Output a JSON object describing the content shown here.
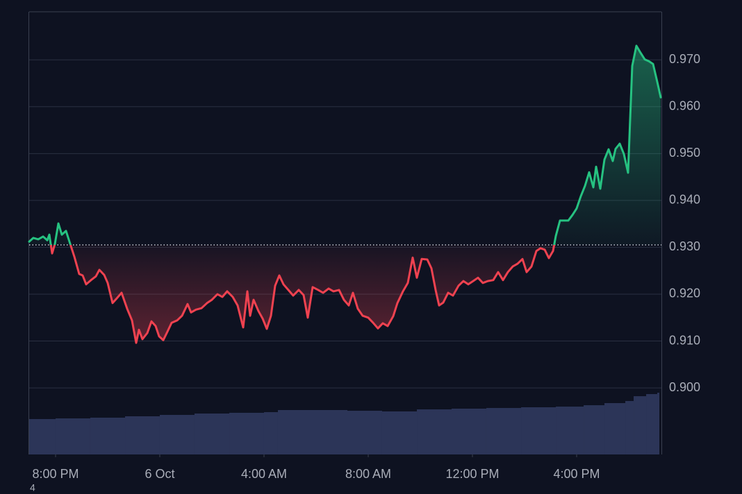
{
  "chart_data": {
    "type": "line",
    "x": [
      -1.013,
      -0.853,
      -0.667,
      -0.48,
      -0.32,
      -0.24,
      -0.133,
      -0.027,
      0.107,
      0.24,
      0.4,
      0.533,
      0.72,
      0.907,
      1.04,
      1.173,
      1.36,
      1.547,
      1.68,
      1.867,
      2.0,
      2.187,
      2.347,
      2.533,
      2.747,
      2.933,
      3.093,
      3.2,
      3.333,
      3.52,
      3.68,
      3.84,
      3.973,
      4.133,
      4.293,
      4.453,
      4.667,
      4.853,
      5.067,
      5.2,
      5.387,
      5.6,
      5.813,
      6.0,
      6.213,
      6.4,
      6.587,
      6.8,
      6.987,
      7.2,
      7.36,
      7.467,
      7.6,
      7.787,
      7.947,
      8.107,
      8.267,
      8.427,
      8.587,
      8.747,
      8.933,
      9.12,
      9.333,
      9.52,
      9.68,
      9.867,
      10.08,
      10.267,
      10.48,
      10.667,
      10.88,
      11.067,
      11.253,
      11.413,
      11.6,
      11.787,
      12.0,
      12.187,
      12.373,
      12.56,
      12.747,
      12.96,
      13.12,
      13.333,
      13.52,
      13.707,
      13.867,
      14.053,
      14.267,
      14.427,
      14.587,
      14.72,
      14.88,
      15.067,
      15.253,
      15.467,
      15.653,
      15.84,
      16.027,
      16.213,
      16.4,
      16.587,
      16.8,
      16.987,
      17.173,
      17.36,
      17.547,
      17.733,
      17.92,
      18.08,
      18.267,
      18.453,
      18.613,
      18.773,
      18.933,
      19.093,
      19.2,
      19.36,
      19.52,
      19.68,
      19.84,
      20.0,
      20.16,
      20.32,
      20.48,
      20.64,
      20.747,
      20.907,
      21.067,
      21.227,
      21.387,
      21.493,
      21.653,
      21.813,
      21.973,
      22.133,
      22.293,
      22.453,
      22.613,
      22.773,
      22.933,
      23.093,
      23.227
    ],
    "values": [
      0.9312,
      0.932,
      0.9317,
      0.9323,
      0.9315,
      0.9327,
      0.9287,
      0.9307,
      0.9351,
      0.9327,
      0.9335,
      0.9312,
      0.928,
      0.9243,
      0.924,
      0.9221,
      0.923,
      0.9238,
      0.9252,
      0.9241,
      0.9224,
      0.9181,
      0.9191,
      0.9203,
      0.9169,
      0.9144,
      0.9096,
      0.9124,
      0.9104,
      0.9117,
      0.9142,
      0.9132,
      0.911,
      0.9102,
      0.912,
      0.9139,
      0.9144,
      0.9154,
      0.9179,
      0.9161,
      0.9167,
      0.917,
      0.9181,
      0.9188,
      0.92,
      0.9194,
      0.9206,
      0.9194,
      0.9176,
      0.9129,
      0.9206,
      0.9154,
      0.9188,
      0.9164,
      0.9148,
      0.9126,
      0.9154,
      0.9218,
      0.924,
      0.9221,
      0.9209,
      0.9197,
      0.9209,
      0.9198,
      0.915,
      0.9215,
      0.9209,
      0.9203,
      0.9212,
      0.9206,
      0.9209,
      0.9188,
      0.9176,
      0.9203,
      0.9169,
      0.9154,
      0.915,
      0.9139,
      0.9127,
      0.9138,
      0.9132,
      0.9153,
      0.9181,
      0.9206,
      0.9224,
      0.9278,
      0.9235,
      0.9275,
      0.9274,
      0.9255,
      0.9209,
      0.9176,
      0.9182,
      0.9203,
      0.9197,
      0.9218,
      0.9228,
      0.9221,
      0.9228,
      0.9235,
      0.9224,
      0.9228,
      0.923,
      0.9247,
      0.923,
      0.9247,
      0.9259,
      0.9265,
      0.9275,
      0.9247,
      0.9259,
      0.9292,
      0.9298,
      0.9295,
      0.9277,
      0.9292,
      0.9324,
      0.9357,
      0.9357,
      0.9357,
      0.9369,
      0.9383,
      0.9409,
      0.9431,
      0.946,
      0.9428,
      0.9472,
      0.9425,
      0.9487,
      0.9509,
      0.9484,
      0.951,
      0.9521,
      0.9499,
      0.9459,
      0.9687,
      0.973,
      0.9715,
      0.9701,
      0.9697,
      0.9691,
      0.9653,
      0.962
    ],
    "color_up": "#26c281",
    "color_down": "#ef4250",
    "baseline": 0.9305,
    "volume": {
      "x": [
        -1.013,
        0,
        1.333,
        2.667,
        4,
        5.333,
        6.667,
        8,
        8.533,
        9.867,
        11.2,
        12.533,
        13.867,
        15.2,
        16.533,
        17.867,
        19.2,
        20.267,
        21.067,
        21.867,
        22.187,
        22.667,
        23.093
      ],
      "values": [
        53.7,
        54.7,
        55.8,
        57.9,
        60,
        62.1,
        63.2,
        64.2,
        67.4,
        67.4,
        66.3,
        65.3,
        68.4,
        69.5,
        70.5,
        71.6,
        72.6,
        74.7,
        77.9,
        81.1,
        88.4,
        91.6,
        93.7
      ],
      "color": "#2c3558"
    },
    "y2lim": [
      0,
      100
    ],
    "xlim": [
      -1.013,
      23.253
    ],
    "xticks": [
      {
        "value": 0,
        "label": "8:00 PM"
      },
      {
        "value": 4,
        "label": "6 Oct"
      },
      {
        "value": 8,
        "label": "4:00 AM"
      },
      {
        "value": 12,
        "label": "8:00 AM"
      },
      {
        "value": 16,
        "label": "12:00 PM"
      },
      {
        "value": 20,
        "label": "4:00 PM"
      }
    ],
    "ylim": [
      0.8858,
      0.9801
    ],
    "yticks": [
      {
        "value": 0.9,
        "label": "0.900"
      },
      {
        "value": 0.91,
        "label": "0.910"
      },
      {
        "value": 0.92,
        "label": "0.920"
      },
      {
        "value": 0.93,
        "label": "0.930"
      },
      {
        "value": 0.94,
        "label": "0.940"
      },
      {
        "value": 0.95,
        "label": "0.950"
      },
      {
        "value": 0.96,
        "label": "0.960"
      },
      {
        "value": 0.97,
        "label": "0.970"
      }
    ],
    "grid": true,
    "footer_text": "4"
  }
}
